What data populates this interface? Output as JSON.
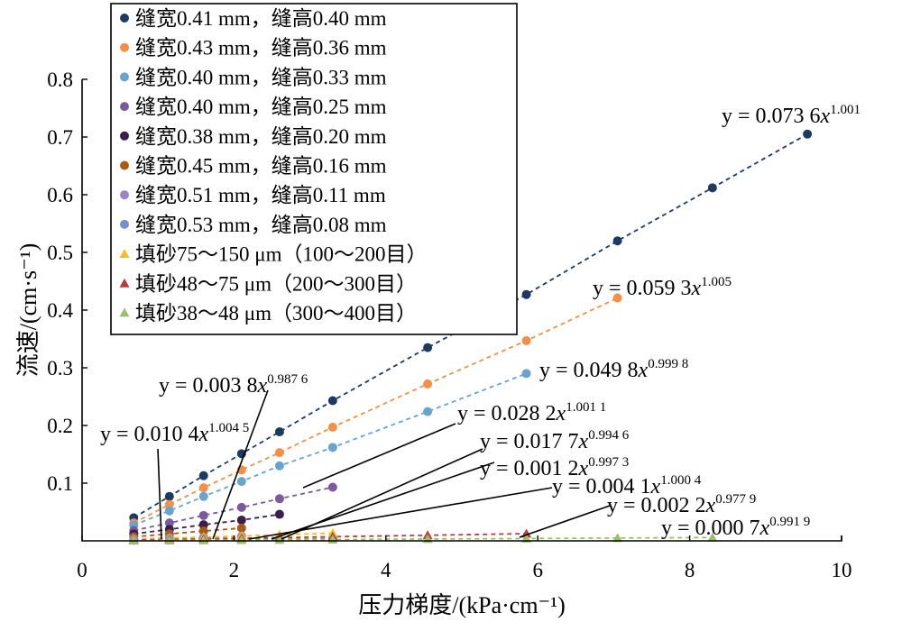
{
  "chart_data": {
    "type": "scatter",
    "xlabel": "压力梯度/(kPa·cm⁻¹)",
    "ylabel": "流速/(cm·s⁻¹)",
    "xlim": [
      0,
      10
    ],
    "ylim": [
      0,
      0.8
    ],
    "xticks": [
      0,
      2,
      4,
      6,
      8,
      10
    ],
    "yticks": [
      0.1,
      0.2,
      0.3,
      0.4,
      0.5,
      0.6,
      0.7,
      0.8
    ],
    "xtick_labels": [
      "0",
      "2",
      "4",
      "6",
      "8",
      "10"
    ],
    "ytick_labels": [
      "0.1",
      "0.2",
      "0.3",
      "0.4",
      "0.5",
      "0.6",
      "0.7",
      "0.8"
    ],
    "legend_position": "top-left",
    "series": [
      {
        "name": "缝宽0.41 mm，缝高0.40 mm",
        "marker": "circle",
        "color": "#1f3a5f",
        "x": [
          0.68,
          1.15,
          1.6,
          2.1,
          2.6,
          3.3,
          4.55,
          5.85,
          7.05,
          8.3,
          9.55
        ],
        "y": [
          0.04,
          0.077,
          0.113,
          0.151,
          0.189,
          0.243,
          0.335,
          0.427,
          0.52,
          0.612,
          0.705
        ],
        "equation": {
          "prefix": "y = 0.073 6",
          "var": "x",
          "power": "1.001"
        }
      },
      {
        "name": "缝宽0.43 mm，缝高0.36 mm",
        "marker": "circle",
        "color": "#f0904c",
        "x": [
          0.68,
          1.15,
          1.6,
          2.1,
          2.6,
          3.3,
          4.55,
          5.85,
          7.05
        ],
        "y": [
          0.031,
          0.063,
          0.092,
          0.123,
          0.153,
          0.197,
          0.272,
          0.347,
          0.421
        ],
        "equation": {
          "prefix": "y = 0.059 3",
          "var": "x",
          "power": "1.005"
        }
      },
      {
        "name": "缝宽0.40 mm，缝高0.33 mm",
        "marker": "circle",
        "color": "#6aa3cb",
        "x": [
          0.68,
          1.15,
          1.6,
          2.1,
          2.6,
          3.3,
          4.55,
          5.85
        ],
        "y": [
          0.027,
          0.052,
          0.077,
          0.103,
          0.13,
          0.162,
          0.224,
          0.29
        ],
        "equation": {
          "prefix": "y = 0.049 8",
          "var": "x",
          "power": "0.999 8"
        }
      },
      {
        "name": "缝宽0.40 mm，缝高0.25 mm",
        "marker": "circle",
        "color": "#7a5a9c",
        "x": [
          0.68,
          1.15,
          1.6,
          2.1,
          2.6,
          3.3
        ],
        "y": [
          0.018,
          0.031,
          0.044,
          0.058,
          0.073,
          0.093
        ],
        "equation": {
          "prefix": "y = 0.028 2",
          "var": "x",
          "power": "1.001 1"
        }
      },
      {
        "name": "缝宽0.38 mm，缝高0.20 mm",
        "marker": "circle",
        "color": "#3a1f4a",
        "x": [
          0.68,
          1.15,
          1.6,
          2.1,
          2.6
        ],
        "y": [
          0.012,
          0.02,
          0.028,
          0.036,
          0.046
        ],
        "equation": {
          "prefix": "y = 0.017 7",
          "var": "x",
          "power": "0.994 6"
        }
      },
      {
        "name": "缝宽0.45 mm，缝高0.16 mm",
        "marker": "circle",
        "color": "#a85a1a",
        "x": [
          0.68,
          1.15,
          1.6,
          2.1
        ],
        "y": [
          0.007,
          0.012,
          0.017,
          0.022
        ],
        "equation": {
          "prefix": "y = 0.010 4",
          "var": "x",
          "power": "1.004 5"
        }
      },
      {
        "name": "缝宽0.51 mm，缝高0.11 mm",
        "marker": "circle",
        "color": "#9b86c4",
        "x": [
          0.68,
          1.15,
          1.6,
          2.1
        ],
        "y": [
          0.003,
          0.005,
          0.006,
          0.008
        ],
        "equation": {
          "prefix": "y = 0.003 8",
          "var": "x",
          "power": "0.987 6"
        }
      },
      {
        "name": "缝宽0.53 mm，缝高0.08 mm",
        "marker": "circle",
        "color": "#7791c8",
        "x": [
          0.68,
          1.15,
          1.6,
          2.1,
          2.6,
          3.3
        ],
        "y": [
          0.001,
          0.0014,
          0.002,
          0.0025,
          0.003,
          0.004
        ],
        "equation": {
          "prefix": "y = 0.001 2",
          "var": "x",
          "power": "0.997 3"
        }
      },
      {
        "name": "填砂75～150 μm（100～200目）",
        "marker": "triangle",
        "color": "#f2bf2a",
        "x": [
          0.68,
          1.15,
          1.6,
          2.1,
          2.6,
          3.3
        ],
        "y": [
          0.003,
          0.0047,
          0.0066,
          0.0085,
          0.0107,
          0.0135
        ],
        "equation": {
          "prefix": "y = 0.004 1",
          "var": "x",
          "power": "1.000 4"
        }
      },
      {
        "name": "填砂48～75 μm（200～300目）",
        "marker": "triangle",
        "color": "#b53f3f",
        "x": [
          0.68,
          1.15,
          1.6,
          2.1,
          2.6,
          3.3,
          4.55,
          5.85
        ],
        "y": [
          0.0015,
          0.0025,
          0.0035,
          0.0045,
          0.0056,
          0.0072,
          0.0097,
          0.0125
        ],
        "equation": {
          "prefix": "y = 0.002 2",
          "var": "x",
          "power": "0.977 9"
        }
      },
      {
        "name": "填砂38～48 μm（300～400目）",
        "marker": "triangle",
        "color": "#9bbf6a",
        "x": [
          0.68,
          1.15,
          1.6,
          2.1,
          2.6,
          3.3,
          4.55,
          5.85,
          7.05,
          8.3
        ],
        "y": [
          0.0005,
          0.0008,
          0.0011,
          0.0015,
          0.0018,
          0.0023,
          0.0032,
          0.004,
          0.0049,
          0.0058
        ],
        "equation": {
          "prefix": "y = 0.000 7",
          "var": "x",
          "power": "0.991 9"
        }
      }
    ]
  }
}
